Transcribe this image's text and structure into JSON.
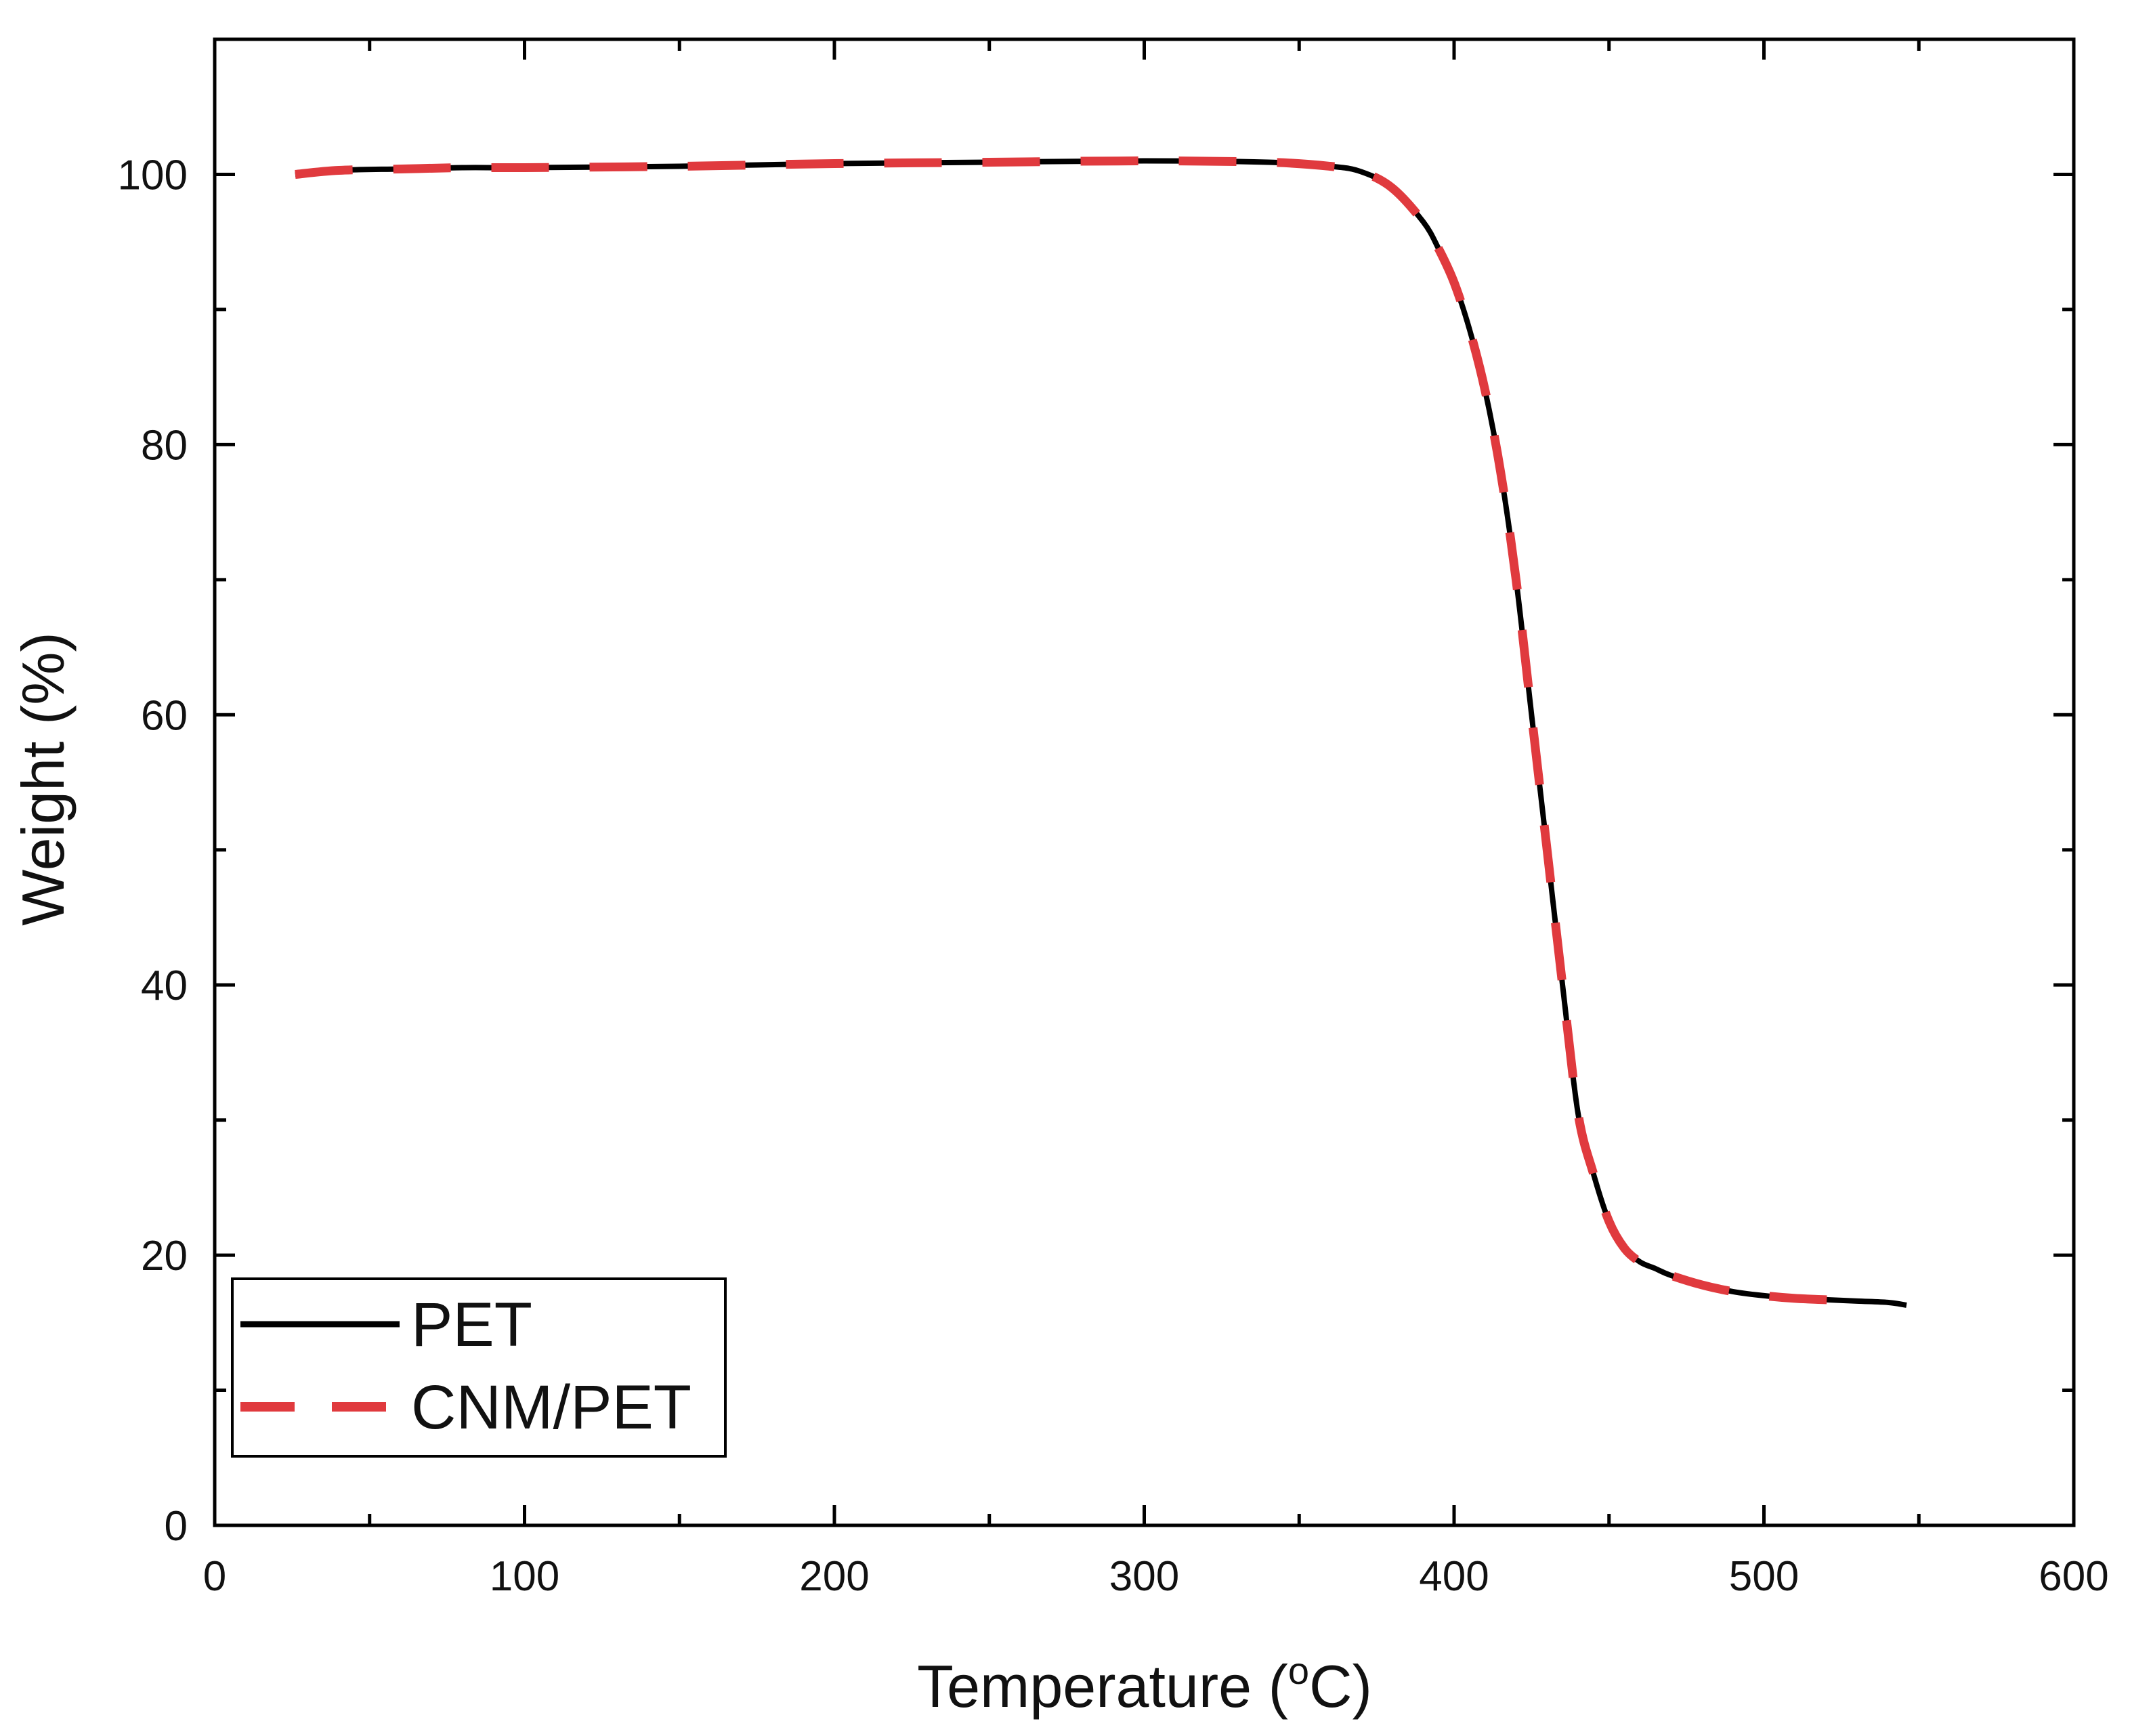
{
  "chart_data": {
    "type": "line",
    "title": "",
    "xlabel": "Temperature (",
    "xlabel_sup": "o",
    "xlabel_suffix": "C)",
    "ylabel": "Weight (%)",
    "xlim": [
      0,
      600
    ],
    "ylim": [
      0,
      110
    ],
    "xticks": [
      0,
      100,
      200,
      300,
      400,
      500,
      600
    ],
    "xtick_labels": [
      "0",
      "100",
      "200",
      "300",
      "400",
      "500",
      "600"
    ],
    "yticks": [
      0,
      20,
      40,
      60,
      80,
      100
    ],
    "ytick_labels": [
      "0",
      "20",
      "40",
      "60",
      "80",
      "100"
    ],
    "x_minor_step": 50,
    "y_minor_step": 10,
    "grid": false,
    "legend_position": "bottom-left",
    "series": [
      {
        "name": "PET",
        "color": "#000000",
        "style": "solid",
        "x": [
          26,
          40,
          60,
          80,
          100,
          150,
          200,
          250,
          300,
          340,
          360,
          370,
          380,
          390,
          395,
          400,
          405,
          410,
          415,
          420,
          425,
          430,
          435,
          440,
          445,
          450,
          455,
          460,
          465,
          470,
          480,
          490,
          500,
          510,
          520,
          530,
          540,
          546
        ],
        "y": [
          100,
          100.3,
          100.4,
          100.5,
          100.5,
          100.6,
          100.8,
          100.9,
          101,
          100.9,
          100.6,
          100.2,
          99,
          96.5,
          94.5,
          92,
          88.5,
          84,
          78,
          70,
          60,
          50,
          40,
          30.5,
          26,
          22.5,
          20.5,
          19.5,
          19,
          18.5,
          17.8,
          17.3,
          17,
          16.8,
          16.7,
          16.6,
          16.5,
          16.3
        ]
      },
      {
        "name": "CNM/PET",
        "color": "#e03a3e",
        "style": "dashed",
        "x": [
          26,
          40,
          60,
          80,
          100,
          150,
          200,
          250,
          300,
          340,
          360,
          370,
          380,
          390,
          395,
          400,
          405,
          410,
          415,
          420,
          425,
          430,
          435,
          440,
          445,
          450,
          455,
          460,
          465,
          470,
          480,
          490,
          500,
          510,
          520,
          530
        ],
        "y": [
          100,
          100.3,
          100.4,
          100.5,
          100.5,
          100.6,
          100.8,
          100.9,
          101,
          100.9,
          100.6,
          100.2,
          99,
          96.5,
          94.5,
          92,
          88.5,
          84,
          78,
          70,
          60,
          50,
          40,
          30.5,
          26,
          22.5,
          20.5,
          19.5,
          19,
          18.5,
          17.8,
          17.3,
          17,
          16.8,
          16.7,
          16.6
        ]
      }
    ]
  }
}
